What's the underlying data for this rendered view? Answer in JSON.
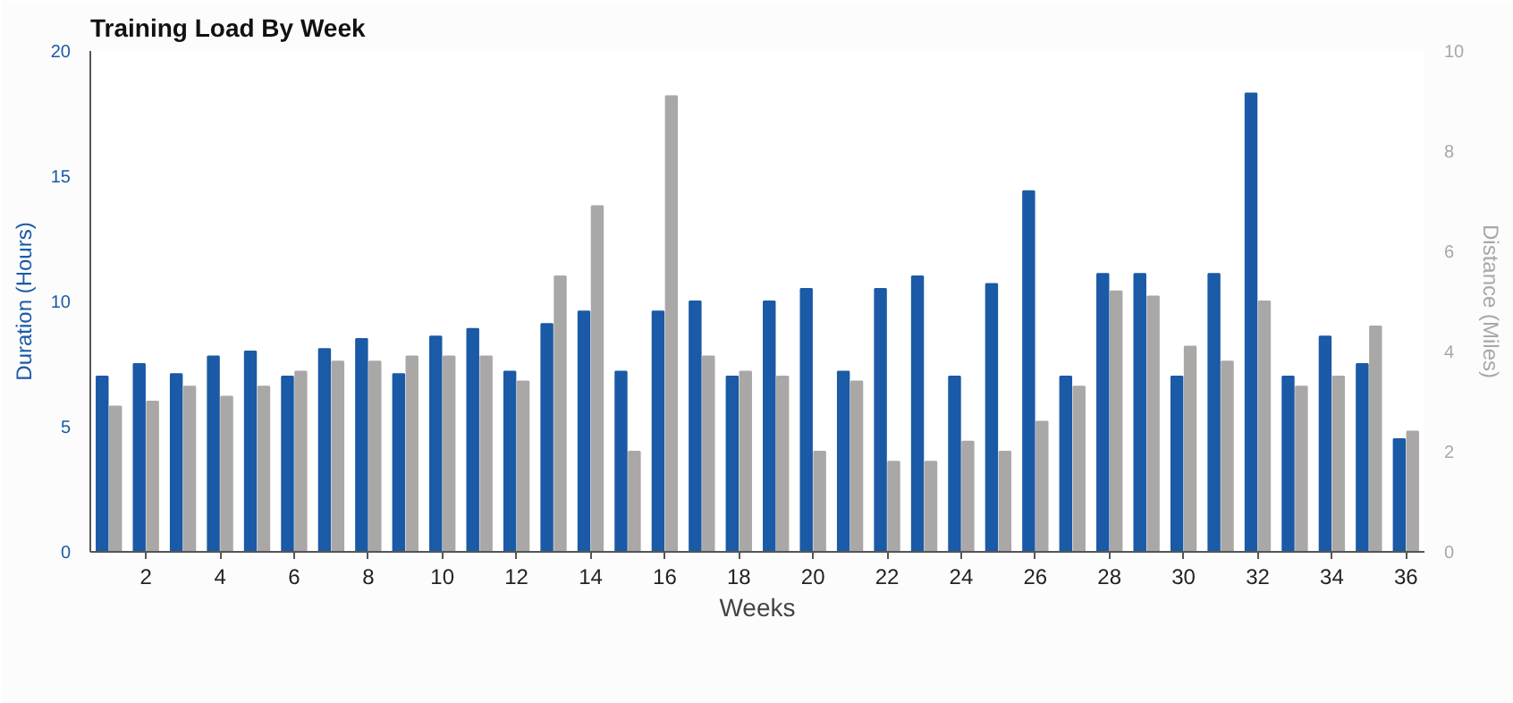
{
  "chart_data": {
    "type": "bar",
    "title": "Training Load By Week",
    "xlabel": "Weeks",
    "ylabel": "Duration (Hours)",
    "y2label": "Distance (Miles)",
    "x": [
      1,
      2,
      3,
      4,
      5,
      6,
      7,
      8,
      9,
      10,
      11,
      12,
      13,
      14,
      15,
      16,
      17,
      18,
      19,
      20,
      21,
      22,
      23,
      24,
      25,
      26,
      27,
      28,
      29,
      30,
      31,
      32,
      33,
      34,
      35,
      36
    ],
    "xlim": [
      0.5,
      36.5
    ],
    "xticks": [
      2,
      4,
      6,
      8,
      10,
      12,
      14,
      16,
      18,
      20,
      22,
      24,
      26,
      28,
      30,
      32,
      34,
      36
    ],
    "ylim": [
      0,
      20
    ],
    "yticks": [
      0,
      5,
      10,
      15,
      20
    ],
    "y2lim": [
      0,
      10
    ],
    "y2ticks": [
      0,
      2,
      4,
      6,
      8,
      10
    ],
    "grid": false,
    "series": [
      {
        "color": "#1a5aa6",
        "values": [
          7.0,
          7.5,
          7.1,
          7.8,
          8.0,
          7.0,
          8.1,
          8.5,
          7.1,
          8.6,
          8.9,
          7.2,
          9.1,
          9.6,
          7.2,
          9.6,
          10.0,
          7.0,
          10.0,
          10.5,
          7.2,
          10.5,
          11.0,
          7.0,
          10.7,
          14.4,
          7.0,
          11.1,
          11.1,
          7.0,
          11.1,
          18.3,
          7.0,
          8.6,
          7.5,
          4.5
        ]
      },
      {
        "color": "#aaa7a7",
        "axis": "y2",
        "values": [
          2.9,
          3.0,
          3.3,
          3.1,
          3.3,
          3.6,
          3.8,
          3.8,
          3.9,
          3.9,
          3.9,
          3.4,
          5.5,
          6.9,
          2.0,
          9.1,
          3.9,
          3.6,
          3.5,
          2.0,
          3.4,
          1.8,
          1.8,
          2.2,
          2.0,
          2.6,
          3.3,
          5.2,
          5.1,
          4.1,
          3.8,
          5.0,
          3.3,
          3.5,
          4.5,
          2.4
        ]
      }
    ]
  }
}
